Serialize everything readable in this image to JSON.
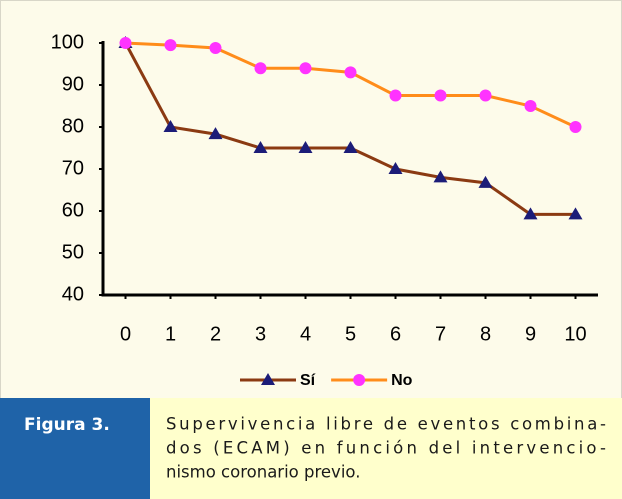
{
  "chart_data": {
    "type": "line",
    "x": [
      0,
      1,
      2,
      3,
      4,
      5,
      6,
      7,
      8,
      9,
      10
    ],
    "series": [
      {
        "name": "Sí",
        "color": "#8b3a12",
        "marker_color": "#1c1c78",
        "marker": "triangle",
        "values": [
          100,
          80,
          78.3,
          75,
          75,
          75,
          70,
          68,
          66.7,
          59.2,
          59.2
        ]
      },
      {
        "name": "No",
        "color": "#ff8c1a",
        "marker_color": "#ff33ff",
        "marker": "circle",
        "values": [
          100,
          99.5,
          98.8,
          94,
          94,
          93,
          87.5,
          87.5,
          87.5,
          85,
          80
        ]
      }
    ],
    "xlim": [
      -0.5,
      10.5
    ],
    "xticks": [
      0,
      1,
      2,
      3,
      4,
      5,
      6,
      7,
      8,
      9,
      10
    ],
    "ylim": [
      40,
      100
    ],
    "yticks": [
      40,
      50,
      60,
      70,
      80,
      90,
      100
    ],
    "legend": "bottom"
  },
  "caption": {
    "label": "Figura 3.",
    "lines": [
      "Supervivencia libre de eventos combina-",
      "dos (ECAM) en función  del intervencio-",
      "nismo coronario previo."
    ]
  }
}
